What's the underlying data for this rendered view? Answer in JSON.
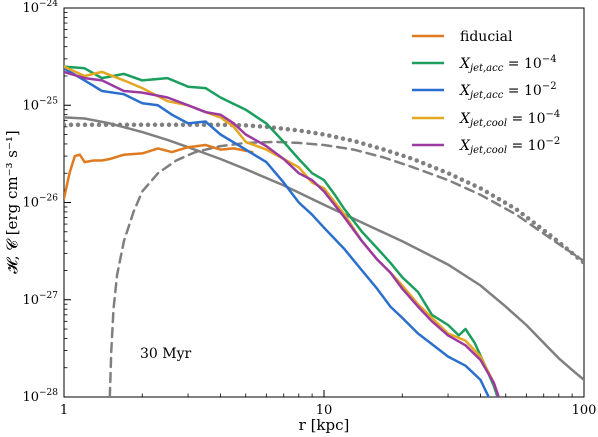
{
  "chart_data": {
    "type": "line",
    "xlabel": "r [kpc]",
    "ylabel": "𝓗, 𝓒 [erg cm⁻³ s⁻¹]",
    "xscale": "log",
    "yscale": "log",
    "xlim": [
      1,
      100
    ],
    "ylim": [
      1e-28,
      1e-24
    ],
    "x_ticks": [
      {
        "value": 1,
        "label": "1"
      },
      {
        "value": 10,
        "label": "10"
      },
      {
        "value": 100,
        "label": "100"
      }
    ],
    "y_ticks": [
      {
        "value": 1e-28,
        "base": "10",
        "exp": "−28"
      },
      {
        "value": 1e-27,
        "base": "10",
        "exp": "−27"
      },
      {
        "value": 1e-26,
        "base": "10",
        "exp": "−26"
      },
      {
        "value": 1e-25,
        "base": "10",
        "exp": "−25"
      },
      {
        "value": 1e-24,
        "base": "10",
        "exp": "−24"
      }
    ],
    "annotation": "30 Myr",
    "legend_position": "top-right",
    "series": [
      {
        "name": "fiducial",
        "color": "#e07a1f",
        "style": "solid",
        "in_legend": true,
        "x": [
          1.0,
          1.05,
          1.1,
          1.15,
          1.2,
          1.3,
          1.4,
          1.5,
          1.7,
          2.0,
          2.3,
          2.6,
          3.0,
          3.5,
          4.0,
          4.5,
          5.0,
          5.3
        ],
        "y": [
          1.1e-26,
          2e-26,
          3e-26,
          3.1e-26,
          2.6e-26,
          2.7e-26,
          2.7e-26,
          2.8e-26,
          3.1e-26,
          3.2e-26,
          3.6e-26,
          3.3e-26,
          3.7e-26,
          3.9e-26,
          3.5e-26,
          3.6e-26,
          3.4e-26,
          3.3e-26
        ]
      },
      {
        "name": "X_jet,acc = 10^-4",
        "color": "#1b9e5e",
        "style": "solid",
        "in_legend": true,
        "x": [
          1.0,
          1.2,
          1.4,
          1.7,
          2.0,
          2.5,
          3.0,
          3.5,
          4.0,
          5.0,
          6.0,
          7.0,
          8.0,
          9.0,
          10.0,
          11.0,
          12.0,
          14.0,
          16.0,
          18.0,
          20.0,
          23.0,
          26.0,
          30.0,
          33.0,
          35.0,
          38.0,
          42.0,
          45.0,
          46.5
        ],
        "y": [
          2.5e-25,
          2.4e-25,
          1.9e-25,
          2.1e-25,
          1.8e-25,
          1.9e-25,
          1.55e-25,
          1.5e-25,
          1.2e-25,
          9e-26,
          6.5e-26,
          4.2e-26,
          2.8e-26,
          2e-26,
          1.7e-26,
          1.2e-26,
          8.5e-27,
          5e-27,
          3.4e-27,
          2.4e-27,
          1.7e-27,
          1.2e-27,
          7e-28,
          5.5e-28,
          4.3e-28,
          5e-28,
          3.6e-28,
          2e-28,
          1.3e-28,
          1e-28
        ]
      },
      {
        "name": "X_jet,acc = 10^-2",
        "color": "#2b6fce",
        "style": "solid",
        "in_legend": true,
        "x": [
          1.0,
          1.2,
          1.4,
          1.7,
          2.0,
          2.3,
          2.6,
          3.0,
          3.5,
          4.0,
          5.0,
          6.0,
          7.0,
          8.0,
          9.0,
          10.0,
          12.0,
          14.0,
          16.0,
          18.0,
          20.0,
          23.0,
          26.0,
          30.0,
          35.0,
          40.0,
          43.0
        ],
        "y": [
          2.4e-25,
          1.8e-25,
          1.4e-25,
          1.3e-25,
          1.05e-25,
          1e-25,
          8e-26,
          6.5e-26,
          6.8e-26,
          5e-26,
          3.5e-26,
          2.6e-26,
          1.6e-26,
          1e-26,
          7.5e-27,
          5.5e-27,
          3.3e-27,
          2e-27,
          1.3e-27,
          8.5e-28,
          6.5e-28,
          4.5e-28,
          3.5e-28,
          2.6e-28,
          2.1e-28,
          1.5e-28,
          1e-28
        ]
      },
      {
        "name": "X_jet,cool = 10^-4",
        "color": "#e5a720",
        "style": "solid",
        "in_legend": true,
        "x": [
          1.0,
          1.2,
          1.4,
          1.7,
          2.0,
          2.5,
          3.0,
          3.5,
          4.0,
          4.5,
          5.0,
          6.0,
          7.0,
          8.0,
          9.0,
          10.0,
          12.0,
          14.0,
          16.0,
          18.0,
          20.0,
          23.0,
          26.0,
          30.0,
          35.0,
          40.0,
          45.0,
          47.0
        ],
        "y": [
          2.5e-25,
          2e-25,
          2.2e-25,
          1.8e-25,
          1.5e-25,
          1.1e-25,
          1e-25,
          8.5e-26,
          7.5e-26,
          6e-26,
          4.2e-26,
          3.5e-26,
          2.8e-26,
          2.3e-26,
          1.6e-26,
          1.4e-26,
          7.5e-27,
          4e-27,
          2.6e-27,
          1.9e-27,
          1.4e-27,
          9e-28,
          6.5e-28,
          4.5e-28,
          3.8e-28,
          2.6e-28,
          1.4e-28,
          1e-28
        ]
      },
      {
        "name": "X_jet,cool = 10^-2",
        "color": "#9b3aa0",
        "style": "solid",
        "in_legend": true,
        "x": [
          1.0,
          1.2,
          1.4,
          1.7,
          2.0,
          2.5,
          3.0,
          3.5,
          4.0,
          4.5,
          5.0,
          6.0,
          7.0,
          8.0,
          9.0,
          10.0,
          12.0,
          14.0,
          16.0,
          18.0,
          20.0,
          23.0,
          26.0,
          30.0,
          35.0,
          40.0,
          45.0,
          47.0
        ],
        "y": [
          2.2e-25,
          1.9e-25,
          1.8e-25,
          1.4e-25,
          1.35e-25,
          1.2e-25,
          1e-25,
          8.5e-26,
          8e-26,
          6.5e-26,
          5e-26,
          3.8e-26,
          2.8e-26,
          2e-26,
          1.7e-26,
          1.3e-26,
          7e-27,
          4e-27,
          2.6e-27,
          1.9e-27,
          1.3e-27,
          8.5e-28,
          6e-28,
          4.3e-28,
          3.4e-28,
          2.4e-28,
          1.4e-28,
          1e-28
        ]
      },
      {
        "name": "",
        "color": "#7f7f7f",
        "style": "solid",
        "in_legend": false,
        "x": [
          1.0,
          1.2,
          1.5,
          2.0,
          2.5,
          3.0,
          4.0,
          5.0,
          7.0,
          10.0,
          15.0,
          20.0,
          30.0,
          40.0,
          50.0,
          60.0,
          70.0,
          80.0,
          90.0,
          100.0
        ],
        "y": [
          7.5e-26,
          7.3e-26,
          6.5e-26,
          5.3e-26,
          4.4e-26,
          3.7e-26,
          2.8e-26,
          2.2e-26,
          1.5e-26,
          9.5e-27,
          5.7e-27,
          4e-27,
          2.3e-27,
          1.4e-27,
          8.5e-28,
          5.5e-28,
          3.6e-28,
          2.5e-28,
          1.9e-28,
          1.5e-28
        ]
      },
      {
        "name": "",
        "color": "#7f7f7f",
        "style": "dashed",
        "in_legend": false,
        "x": [
          1.5,
          1.52,
          1.55,
          1.6,
          1.7,
          1.85,
          2.0,
          2.3,
          2.7,
          3.2,
          4.0,
          5.0,
          6.5,
          8.0,
          10.0,
          13.0,
          17.0,
          22.0,
          30.0,
          40.0,
          55.0,
          75.0,
          100.0
        ],
        "y": [
          1e-28,
          3e-28,
          8e-28,
          1.8e-27,
          4e-27,
          8e-27,
          1.3e-26,
          2e-26,
          2.7e-26,
          3.3e-26,
          3.8e-26,
          4.1e-26,
          4.2e-26,
          4.1e-26,
          3.9e-26,
          3.5e-26,
          2.9e-26,
          2.3e-26,
          1.7e-26,
          1.2e-26,
          7.5e-27,
          4.2e-27,
          2.5e-27
        ]
      },
      {
        "name": "",
        "color": "#7f7f7f",
        "style": "dotted",
        "in_legend": false,
        "x": [
          1.0,
          1.5,
          2.0,
          3.0,
          4.0,
          5.0,
          6.0,
          8.0,
          10.0,
          13.0,
          17.0,
          22.0,
          30.0,
          40.0,
          55.0,
          75.0,
          100.0
        ],
        "y": [
          6.3e-26,
          6.3e-26,
          6.3e-26,
          6.3e-26,
          6.3e-26,
          6.2e-26,
          6e-26,
          5.5e-26,
          5e-26,
          4.3e-26,
          3.5e-26,
          2.8e-26,
          2e-26,
          1.4e-26,
          8.5e-27,
          4.5e-27,
          2.4e-27
        ]
      }
    ]
  }
}
